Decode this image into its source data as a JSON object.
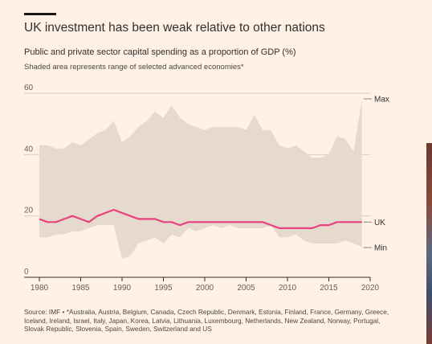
{
  "header": {
    "title": "UK investment has been weak relative to other nations",
    "subtitle": "Public and private sector capital spending as a proportion of GDP (%)",
    "note": "Shaded area represents range of selected advanced economies*"
  },
  "source": "Source: IMF • *Australia, Austria, Belgium, Canada, Czech Republic, Denmark, Estonia, Finland, France, Germany, Greece, Iceland, Ireland, Israel, Italy, Japan, Korea, Latvia, Lithuania, Luxembourg, Netherlands, New Zealand, Norway, Portugal, Slovak Republic, Slovenia, Spain, Sweden, Switzerland and US",
  "colors": {
    "background": "#fff1e5",
    "range_fill": "#e6d9ce",
    "uk_line": "#e8417e",
    "grid": "#d9ccc1"
  },
  "chart_data": {
    "type": "area",
    "x": [
      1980,
      1981,
      1982,
      1983,
      1984,
      1985,
      1986,
      1987,
      1988,
      1989,
      1990,
      1991,
      1992,
      1993,
      1994,
      1995,
      1996,
      1997,
      1998,
      1999,
      2000,
      2001,
      2002,
      2003,
      2004,
      2005,
      2006,
      2007,
      2008,
      2009,
      2010,
      2011,
      2012,
      2013,
      2014,
      2015,
      2016,
      2017,
      2018,
      2019
    ],
    "series": [
      {
        "name": "Max",
        "values": [
          43,
          43,
          42,
          42,
          44,
          43,
          45,
          47,
          48,
          51,
          44,
          46,
          49,
          51,
          54,
          52,
          56,
          52,
          50,
          49,
          48,
          49,
          49,
          49,
          49,
          48,
          53,
          48,
          48,
          43,
          42,
          43,
          41,
          39,
          39,
          40,
          46,
          45,
          41,
          58
        ]
      },
      {
        "name": "UK",
        "values": [
          19,
          18,
          18,
          19,
          20,
          19,
          18,
          20,
          21,
          22,
          21,
          20,
          19,
          19,
          19,
          18,
          18,
          17,
          18,
          18,
          18,
          18,
          18,
          18,
          18,
          18,
          18,
          18,
          17,
          16,
          16,
          16,
          16,
          16,
          17,
          17,
          18,
          18,
          18,
          18
        ]
      },
      {
        "name": "Min",
        "values": [
          13,
          13,
          14,
          14,
          15,
          15,
          16,
          17,
          17,
          17,
          6,
          7,
          11,
          12,
          13,
          11,
          14,
          13,
          16,
          15,
          16,
          17,
          16,
          17,
          16,
          16,
          16,
          16,
          17,
          13,
          13,
          14,
          12,
          11,
          11,
          11,
          11,
          12,
          11,
          10
        ]
      }
    ],
    "xlim": [
      1980,
      2020
    ],
    "ylim": [
      0,
      60
    ],
    "xticks": [
      1980,
      1985,
      1990,
      1995,
      2000,
      2005,
      2010,
      2015,
      2020
    ],
    "yticks": [
      0,
      20,
      40,
      60
    ],
    "grid": true
  }
}
